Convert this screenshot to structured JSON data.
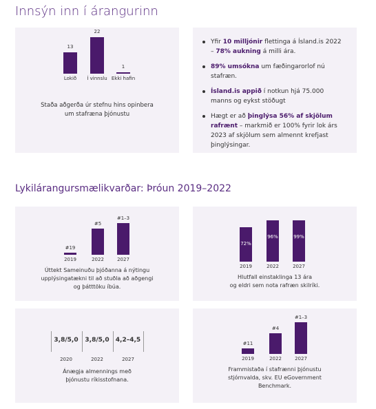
{
  "header": {
    "title": "Innsýn inn í árangurinn"
  },
  "status_card": {
    "categories": [
      "Lokið",
      "Í vinnslu",
      "Ekki hafin"
    ],
    "values": [
      13,
      22,
      1
    ],
    "color": "#4a1a6b",
    "caption": [
      "Staða aðgerða úr stefnu hins opinbera",
      "um stafræna þjónustu"
    ]
  },
  "highlights": [
    [
      {
        "text": "Yfir "
      },
      {
        "text": "10 milljónir",
        "bold": true
      },
      {
        "text": " flettinga á Ísland.is 2022 – "
      },
      {
        "text": "78% aukning",
        "bold": true
      },
      {
        "text": " á milli ára."
      }
    ],
    [
      {
        "text": "89% umsókna",
        "bold": true
      },
      {
        "text": " um fæðingarorlof nú stafræn."
      }
    ],
    [
      {
        "text": "Ísland.is appið",
        "bold": true
      },
      {
        "text": " í notkun hjá 75.000 manns og eykst stöðugt"
      }
    ],
    [
      {
        "text": "Hægt er að "
      },
      {
        "text": "þinglýsa 56% af skjölum rafrænt",
        "bold": true
      },
      {
        "text": " – markmið er 100% fyrir lok árs 2023 af skjölum sem almennt krefjast þinglýsingar."
      }
    ]
  ],
  "section_title": "Lykilárangursmælikvarðar: Þróun 2019–2022",
  "kpis": [
    {
      "kind": "bars-above",
      "labels": [
        "#19",
        "#5",
        "#1–3"
      ],
      "years": [
        "2019",
        "2022",
        "2027"
      ],
      "caption": [
        "Úttekt Sameinuðu þjóðanna á nýtingu",
        "upplýsingatækni til að stuðla að aðgengi",
        "og þátttöku íbúa."
      ]
    },
    {
      "kind": "bars-inside",
      "labels": [
        "72%",
        "96%",
        "99%"
      ],
      "years": [
        "2019",
        "2022",
        "2027"
      ],
      "caption": [
        "Hlutfall einstaklinga 13 ára",
        "og eldri sem nota rafræn skilríki."
      ]
    },
    {
      "kind": "boxes",
      "labels": [
        "3,8/5,0",
        "3,8/5,0",
        "4,2–4,5"
      ],
      "years": [
        "2020",
        "2022",
        "2027"
      ],
      "caption": [
        "Ánægja almennings með",
        "þjónustu ríkisstofnana."
      ]
    },
    {
      "kind": "bars-above",
      "labels": [
        "#11",
        "#4",
        "#1–3"
      ],
      "years": [
        "2019",
        "2022",
        "2027"
      ],
      "caption": [
        "Frammistaða í stafrænni þjónustu",
        "stjórnvalda, skv. EU eGovernment",
        "Benchmark."
      ]
    }
  ]
}
